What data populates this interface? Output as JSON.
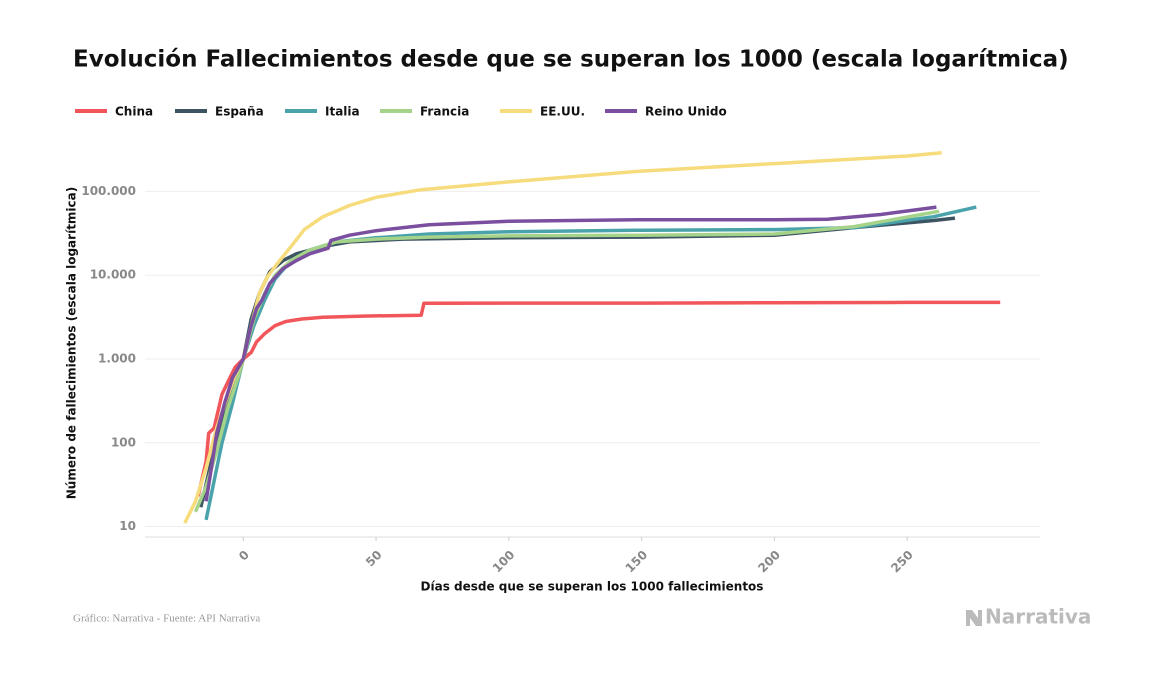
{
  "chart_data": {
    "type": "line",
    "title": "Evolución Fallecimientos desde que se superan los 1000 (escala logarítmica)",
    "x_label": "Días desde que se superan los 1000 fallecimientos",
    "y_label": "Número de fallecimientos (escala logarítmica)",
    "source": "Gráfico: Narrativa - Fuente: API Narrativa",
    "brand": "Narrativa",
    "log_y": true,
    "grid": true,
    "legend": "top-left",
    "xlim": [
      -37,
      300
    ],
    "ylim": [
      7.5,
      400000
    ],
    "xticks": [
      0,
      50,
      100,
      150,
      200,
      250
    ],
    "yticks": [
      10,
      100,
      {
        "value": 1000,
        "label": "1.000"
      },
      {
        "value": 10000,
        "label": "10.000"
      },
      {
        "value": 100000,
        "label": "100.000"
      }
    ],
    "series": [
      {
        "name": "China",
        "color": "#f0565a",
        "x": [
          -17,
          -14,
          -13,
          -11,
          -8,
          -5,
          -3,
          0,
          3,
          5,
          8,
          12,
          16,
          22,
          30,
          45,
          67,
          68,
          100,
          150,
          200,
          250,
          285
        ],
        "values": [
          23,
          60,
          130,
          150,
          380,
          600,
          800,
          1000,
          1200,
          1600,
          2000,
          2500,
          2800,
          3000,
          3150,
          3250,
          3330,
          4630,
          4640,
          4650,
          4700,
          4740,
          4740
        ]
      },
      {
        "name": "España",
        "color": "#3d5463",
        "x": [
          -16,
          -12,
          -8,
          -4,
          0,
          3,
          6,
          10,
          15,
          20,
          30,
          40,
          60,
          100,
          150,
          200,
          230,
          260,
          268
        ],
        "values": [
          17,
          60,
          200,
          500,
          1000,
          3000,
          6000,
          11000,
          15000,
          18000,
          22000,
          25000,
          27000,
          28000,
          28500,
          30000,
          37000,
          45000,
          48000
        ]
      },
      {
        "name": "Italia",
        "color": "#4aa3ab",
        "x": [
          -14,
          -11,
          -8,
          -4,
          0,
          4,
          8,
          12,
          18,
          25,
          35,
          50,
          70,
          100,
          150,
          200,
          230,
          260,
          276
        ],
        "values": [
          12,
          35,
          100,
          300,
          1000,
          2500,
          5000,
          9000,
          15000,
          20000,
          25000,
          28000,
          31000,
          33000,
          34500,
          35000,
          37000,
          50000,
          65000
        ]
      },
      {
        "name": "Francia",
        "color": "#a6d38a",
        "x": [
          -18,
          -14,
          -10,
          -6,
          -2,
          0,
          4,
          8,
          12,
          18,
          25,
          35,
          50,
          70,
          100,
          150,
          200,
          230,
          262
        ],
        "values": [
          15,
          30,
          80,
          250,
          600,
          1000,
          3000,
          6000,
          10000,
          15000,
          20000,
          25000,
          27000,
          28500,
          29500,
          30000,
          31000,
          38000,
          58000
        ]
      },
      {
        "name": "EE.UU.",
        "color": "#f6dc7c",
        "x": [
          -22,
          -18,
          -14,
          -10,
          -6,
          -3,
          0,
          3,
          6,
          9,
          13,
          18,
          23,
          30,
          40,
          50,
          67,
          100,
          150,
          200,
          250,
          263
        ],
        "values": [
          11,
          20,
          50,
          150,
          350,
          650,
          1000,
          2500,
          6000,
          9500,
          14000,
          22000,
          35000,
          50000,
          68000,
          85000,
          105000,
          130000,
          175000,
          215000,
          265000,
          290000
        ]
      },
      {
        "name": "Reino Unido",
        "color": "#7a4fa0",
        "x": [
          -14,
          -12,
          -10,
          -7,
          -4,
          0,
          3,
          5,
          7,
          10,
          15,
          20,
          25,
          32,
          33,
          40,
          50,
          70,
          100,
          150,
          200,
          220,
          240,
          261
        ],
        "values": [
          20,
          50,
          130,
          300,
          600,
          1000,
          2500,
          4000,
          5000,
          8000,
          12000,
          15000,
          18000,
          21000,
          26000,
          30000,
          34000,
          40000,
          44000,
          46000,
          46000,
          46500,
          53000,
          65000
        ]
      }
    ]
  }
}
